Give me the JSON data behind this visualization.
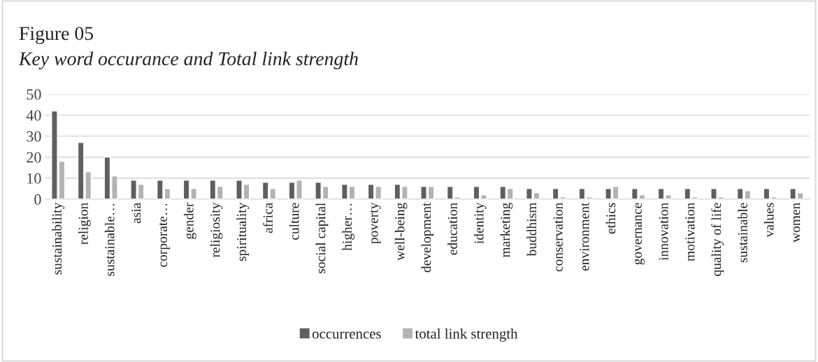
{
  "chart_data": {
    "type": "bar",
    "title": "Figure 05",
    "subtitle": "Key word occurance and Total link strength",
    "categories": [
      "sustainability",
      "religion",
      "sustainable…",
      "asia",
      "corporate…",
      "gender",
      "religiosity",
      "spirituality",
      "africa",
      "culture",
      "social capital",
      "higher…",
      "poverty",
      "well-being",
      "development",
      "education",
      "identity",
      "marketing",
      "buddhism",
      "conservation",
      "environment",
      "ethics",
      "governance",
      "innovation",
      "motivation",
      "quality of life",
      "sustainable",
      "values",
      "women"
    ],
    "series": [
      {
        "name": "occurrences",
        "color": "#5f5f5f",
        "values": [
          42,
          27,
          20,
          9,
          9,
          9,
          9,
          9,
          8,
          8,
          8,
          7,
          7,
          7,
          6,
          6,
          6,
          6,
          5,
          5,
          5,
          5,
          5,
          5,
          5,
          5,
          5,
          5,
          5
        ]
      },
      {
        "name": "total link strength",
        "color": "#b3b3b3",
        "values": [
          18,
          13,
          11,
          7,
          5,
          5,
          6,
          7,
          5,
          9,
          6,
          6,
          6,
          6,
          6,
          1,
          2,
          5,
          3,
          1,
          1,
          6,
          2,
          2,
          1,
          1,
          4,
          1,
          3
        ]
      }
    ],
    "ylim": [
      0,
      50
    ],
    "yticks": [
      0,
      10,
      20,
      30,
      40,
      50
    ],
    "grid": "y",
    "legend": "bottom"
  }
}
